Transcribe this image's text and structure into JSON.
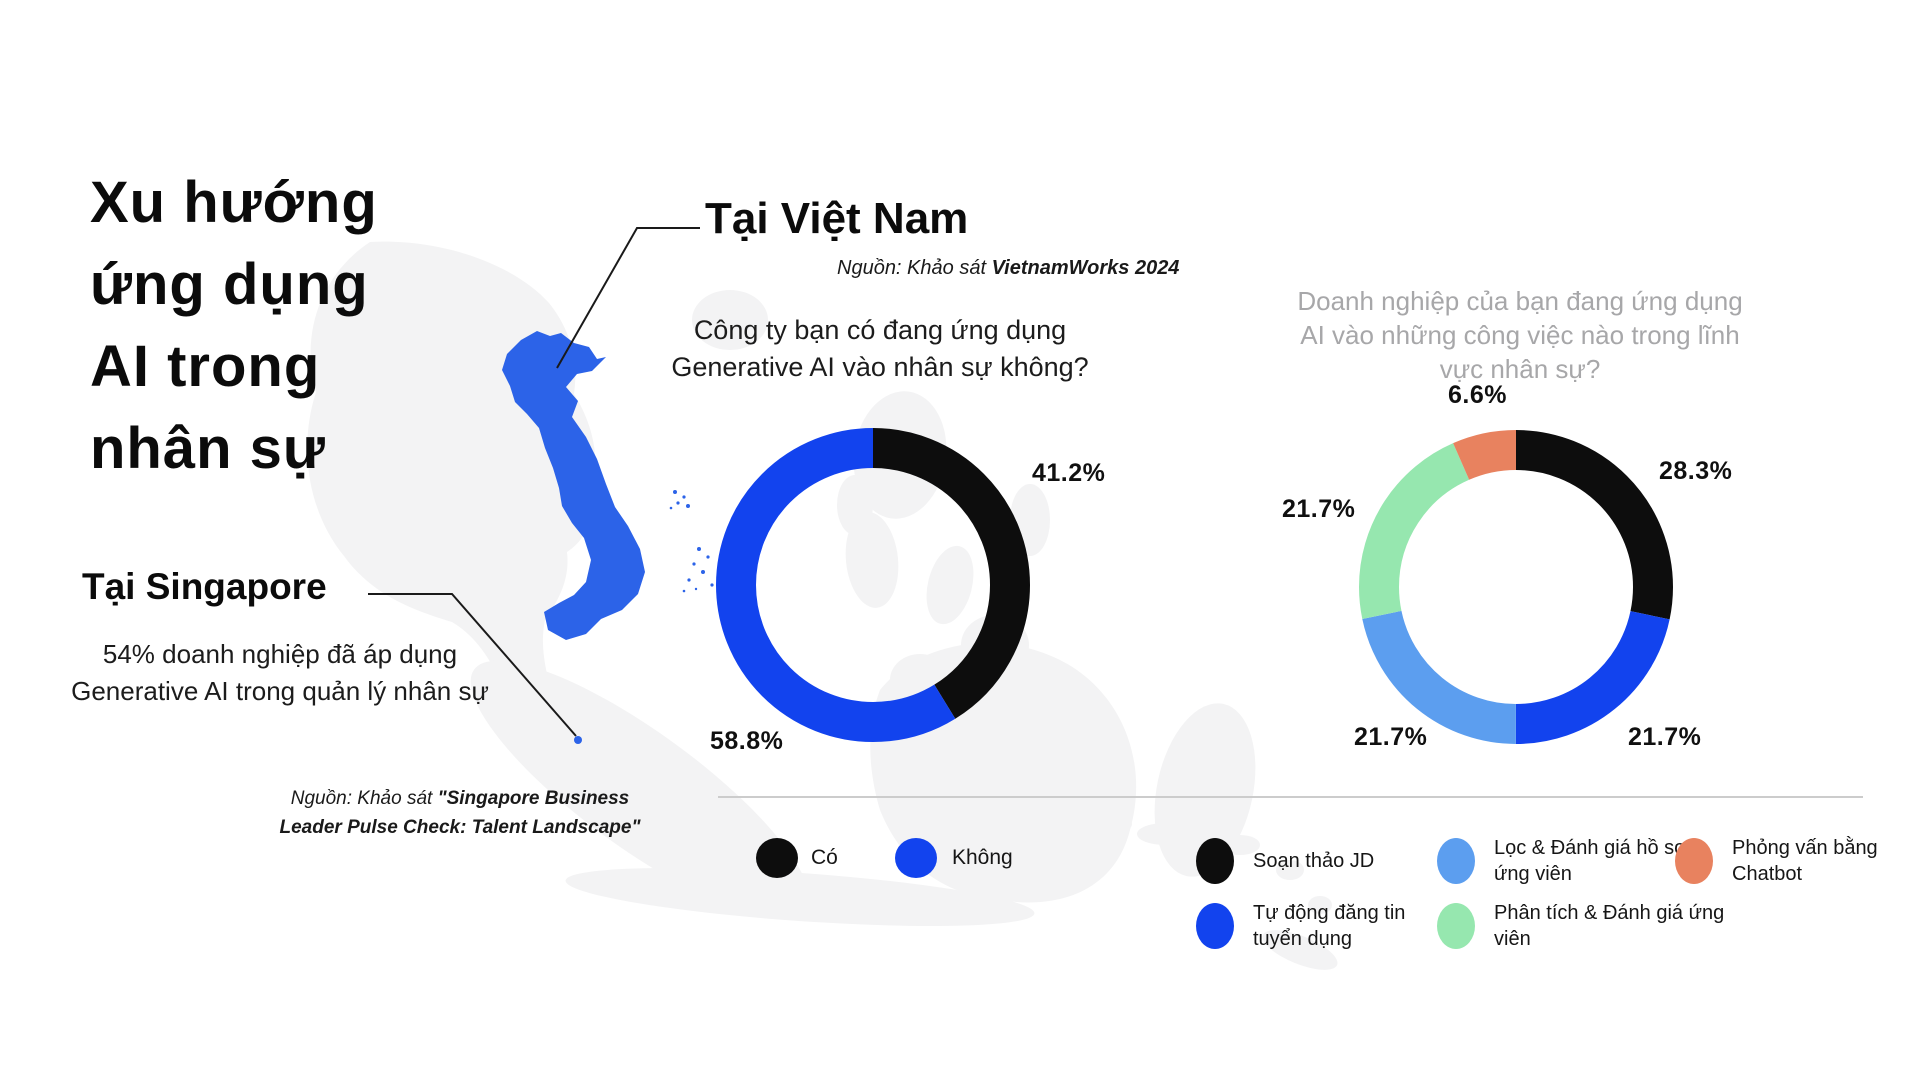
{
  "page": {
    "background": "#ffffff",
    "title_lines": [
      "Xu hướng",
      "ứng dụng",
      "AI trong",
      "nhân sự"
    ],
    "title_full": "Xu hướng ứng dụng AI trong nhân sự"
  },
  "colors": {
    "black_slice": "#0d0d0d",
    "blue": "#1243ee",
    "light_blue": "#5c9eef",
    "green": "#96e7af",
    "coral": "#e8825f",
    "vietnam_blue": "#2c63e8",
    "map_gray": "#f3f3f4",
    "divider": "#cccccc",
    "muted_heading": "#a7a7a9"
  },
  "singapore": {
    "heading": "Tại Singapore",
    "stat_line1": "54% doanh nghiệp đã áp dụng",
    "stat_line2": "Generative AI trong quản lý nhân sự",
    "source_prefix": "Nguồn: Khảo sát ",
    "source_bold_line1": "\"Singapore Business",
    "source_bold_line2": "Leader Pulse Check: Talent Landscape\""
  },
  "vietnam": {
    "heading": "Tại Việt Nam",
    "source_prefix": "Nguồn: Khảo sát ",
    "source_bold": "VietnamWorks 2024"
  },
  "chart_data": [
    {
      "type": "donut",
      "title": "Công ty bạn có đang ứng dụng Generative AI vào nhân sự không?",
      "title_lines": [
        "Công ty bạn có đang ứng dụng",
        "Generative AI vào nhân sự không?"
      ],
      "start_angle_deg": 0,
      "direction": "clockwise",
      "legend_position": "bottom",
      "slices": [
        {
          "label": "Có",
          "value": 41.2,
          "pct": "41.2%",
          "color": "#0d0d0d"
        },
        {
          "label": "Không",
          "value": 58.8,
          "pct": "58.8%",
          "color": "#1243ee"
        }
      ]
    },
    {
      "type": "donut",
      "title": "Doanh nghiệp của bạn đang ứng dụng AI vào những công việc nào trong lĩnh vực nhân sự?",
      "title_lines": [
        "Doanh nghiệp của bạn đang ứng dụng",
        "AI vào những công việc nào trong lĩnh",
        "vực nhân sự?"
      ],
      "start_angle_deg": 0,
      "direction": "clockwise",
      "legend_position": "bottom",
      "slices": [
        {
          "label": "Soạn thảo JD",
          "value": 28.3,
          "pct": "28.3%",
          "color": "#0d0d0d"
        },
        {
          "label": "Tự động đăng tin tuyển dụng",
          "value": 21.7,
          "pct": "21.7%",
          "color": "#1243ee"
        },
        {
          "label": "Lọc & Đánh giá hồ sơ ứng viên",
          "value": 21.7,
          "pct": "21.7%",
          "color": "#5c9eef"
        },
        {
          "label": "Phân tích & Đánh giá ứng viên",
          "value": 21.7,
          "pct": "21.7%",
          "color": "#96e7af"
        },
        {
          "label": "Phỏng vấn bằng Chatbot",
          "value": 6.6,
          "pct": "6.6%",
          "color": "#e8825f"
        }
      ]
    }
  ],
  "legend2": {
    "items": [
      {
        "color": "#0d0d0d",
        "line1": "Soạn thảo JD",
        "line2": ""
      },
      {
        "color": "#5c9eef",
        "line1": "Lọc & Đánh giá hồ sơ",
        "line2": "ứng viên"
      },
      {
        "color": "#e8825f",
        "line1": "Phỏng vấn bằng",
        "line2": "Chatbot"
      },
      {
        "color": "#1243ee",
        "line1": "Tự động đăng tin",
        "line2": "tuyển dụng"
      },
      {
        "color": "#96e7af",
        "line1": "Phân tích & Đánh giá ứng",
        "line2": "viên"
      }
    ]
  }
}
